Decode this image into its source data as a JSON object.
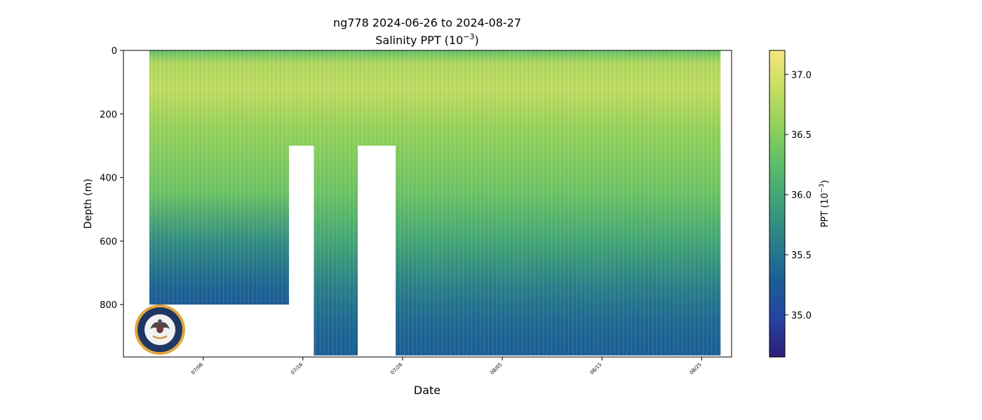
{
  "chart_data": {
    "type": "heatmap",
    "title_line1": "ng778 2024-06-26 to 2024-08-27",
    "title_line2_prefix": "Salinity PPT (10",
    "title_line2_exp": "−3",
    "title_line2_suffix": ")",
    "xlabel": "Date",
    "ylabel": "Depth (m)",
    "x_axis_start": "2024-06-28",
    "x_axis_end": "2024-08-28",
    "x_ticks": [
      {
        "date": "2024-07-06",
        "label": "07/06"
      },
      {
        "date": "2024-07-16",
        "label": "07/16"
      },
      {
        "date": "2024-07-26",
        "label": "07/26"
      },
      {
        "date": "2024-08-05",
        "label": "08/05"
      },
      {
        "date": "2024-08-15",
        "label": "08/15"
      },
      {
        "date": "2024-08-25",
        "label": "08/25"
      }
    ],
    "ylim": [
      965,
      0
    ],
    "y_ticks": [
      0,
      200,
      400,
      600,
      800
    ],
    "colorbar": {
      "label_prefix": "PPT (10",
      "label_exp": "−3",
      "label_suffix": ")",
      "range": [
        34.65,
        37.2
      ],
      "ticks": [
        35.0,
        35.5,
        36.0,
        36.5,
        37.0
      ],
      "colormap": [
        "#2c1e78",
        "#2643a0",
        "#1a5e96",
        "#2a7f8a",
        "#3ea07a",
        "#5bbd6a",
        "#8fd05a",
        "#c6dd62",
        "#f4e67f"
      ]
    },
    "data_segments": [
      {
        "start": "2024-06-30.6",
        "end": "2024-07-14.6",
        "max_depth": 800
      },
      {
        "start": "2024-07-14.6",
        "end": "2024-07-17.1",
        "max_depth": 300
      },
      {
        "start": "2024-07-17.1",
        "end": "2024-07-21.5",
        "max_depth": 960
      },
      {
        "start": "2024-07-21.5",
        "end": "2024-07-25.3",
        "max_depth": 300
      },
      {
        "start": "2024-07-25.3",
        "end": "2024-08-26.9",
        "max_depth": 960
      }
    ],
    "salinity_profile": [
      {
        "depth": 0,
        "value": 36.3
      },
      {
        "depth": 40,
        "value": 36.75
      },
      {
        "depth": 120,
        "value": 36.85
      },
      {
        "depth": 250,
        "value": 36.6
      },
      {
        "depth": 450,
        "value": 36.35
      },
      {
        "depth": 600,
        "value": 36.0
      },
      {
        "depth": 750,
        "value": 35.6
      },
      {
        "depth": 850,
        "value": 35.4
      },
      {
        "depth": 960,
        "value": 35.3
      }
    ],
    "grid": false,
    "logo": "united-states-navy-seal"
  }
}
